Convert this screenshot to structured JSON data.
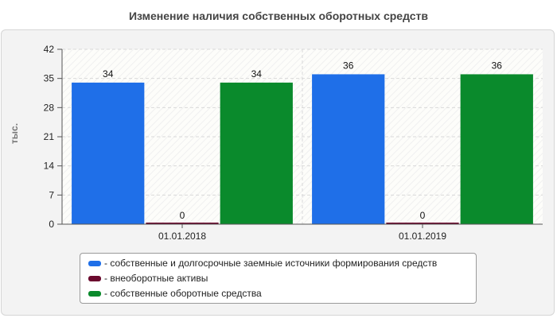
{
  "chart_data": {
    "type": "bar",
    "title": "Изменение наличия собственных оборотных средств",
    "ylabel": "тыс.",
    "xlabel": "",
    "ylim": [
      0,
      42
    ],
    "yticks": [
      0,
      7,
      14,
      21,
      28,
      35,
      42
    ],
    "categories": [
      "01.01.2018",
      "01.01.2019"
    ],
    "grid": true,
    "legend_position": "bottom",
    "series": [
      {
        "name": "- собственные и долгосрочные заемные источники формирования средств",
        "color": "#1f6fe8",
        "values": [
          34,
          36
        ],
        "labels": [
          "34",
          "36"
        ]
      },
      {
        "name": "- внеоборотные активы",
        "color": "#6b0a2e",
        "values": [
          0,
          0
        ],
        "labels": [
          "0",
          "0"
        ]
      },
      {
        "name": "- собственные оборотные средства",
        "color": "#0a8a2c",
        "values": [
          34,
          36
        ],
        "labels": [
          "34",
          "36"
        ]
      }
    ]
  }
}
